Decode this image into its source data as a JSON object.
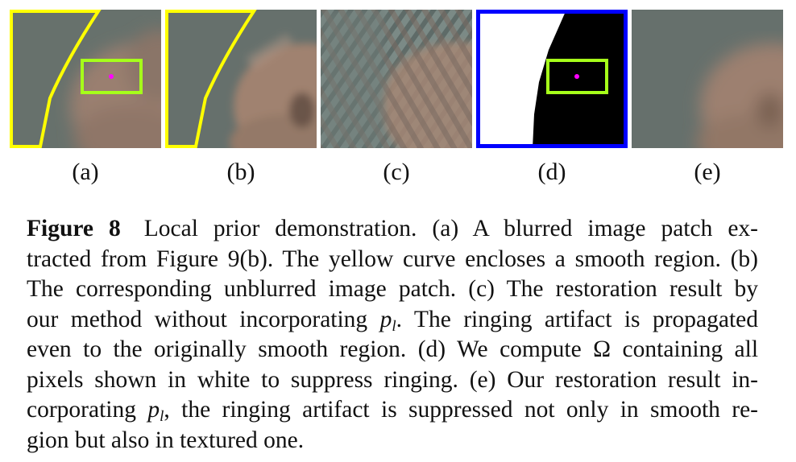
{
  "panel_labels": [
    "(a)",
    "(b)",
    "(c)",
    "(d)",
    "(e)"
  ],
  "colors": {
    "background_gray": "#66706c",
    "skin": "#9a8070",
    "curve_yellow": "#ffff00",
    "box_green": "#a6ff1a",
    "point_magenta": "#ff00ff",
    "mask_border_blue": "#0000ff",
    "mask_white": "#ffffff",
    "mask_black": "#000000"
  },
  "caption": {
    "figure_label": "Figure 8",
    "line1_rest": "Local prior demonstration. (a) A blurred image patch ex-",
    "line2": "tracted from Figure 9(b). The yellow curve encloses a smooth region. (b)",
    "line3": "The corresponding unblurred image patch. (c) The restoration result by",
    "line4_pre": "our method without incorporating",
    "math_p": "p",
    "math_sub_l": "l",
    "line4_post": ". The ringing artifact is propagated",
    "line5_pre": "even to the originally smooth region. (d) We compute",
    "omega": "Ω",
    "line5_post": "containing all",
    "line6": "pixels shown in white to suppress ringing. (e) Our restoration result in-",
    "line7_pre": "corporating",
    "line7_post": ", the ringing artifact is suppressed not only in smooth re-",
    "line8": "gion but also in textured one."
  }
}
